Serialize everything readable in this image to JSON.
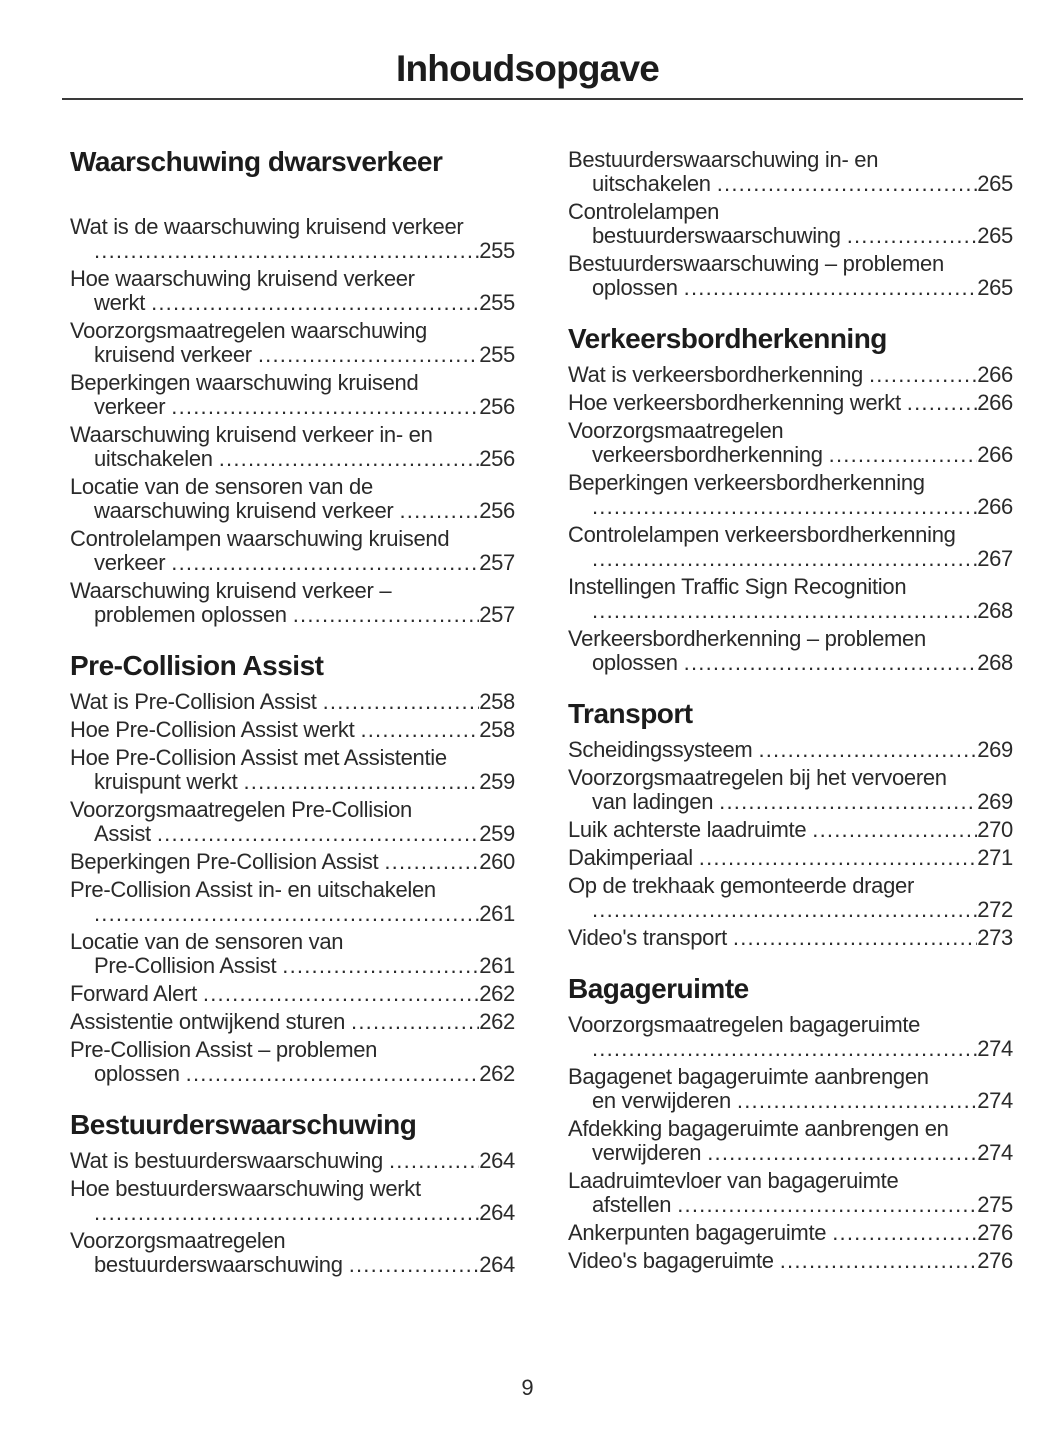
{
  "page": {
    "title": "Inhoudsopgave",
    "footer_page_number": "9"
  },
  "toc": {
    "columns": [
      {
        "sections": [
          {
            "heading": "Waarschuwing dwarsverkeer",
            "extra_heading_gap": true,
            "entries": [
              {
                "lines": [
                  "Wat is de waarschuwing kruisend verkeer",
                  ""
                ],
                "page": "255"
              },
              {
                "lines": [
                  "Hoe waarschuwing kruisend verkeer",
                  "werkt"
                ],
                "page": "255"
              },
              {
                "lines": [
                  "Voorzorgsmaatregelen waarschuwing",
                  "kruisend verkeer"
                ],
                "page": "255"
              },
              {
                "lines": [
                  "Beperkingen waarschuwing kruisend",
                  "verkeer"
                ],
                "page": "256"
              },
              {
                "lines": [
                  "Waarschuwing kruisend verkeer in- en",
                  "uitschakelen"
                ],
                "page": "256"
              },
              {
                "lines": [
                  "Locatie van de sensoren van de",
                  "waarschuwing kruisend verkeer"
                ],
                "page": "256"
              },
              {
                "lines": [
                  "Controlelampen waarschuwing kruisend",
                  "verkeer"
                ],
                "page": "257"
              },
              {
                "lines": [
                  "Waarschuwing kruisend verkeer –",
                  "problemen oplossen"
                ],
                "page": "257"
              }
            ]
          },
          {
            "heading": "Pre-Collision Assist",
            "extra_heading_gap": false,
            "entries": [
              {
                "lines": [
                  "Wat is Pre-Collision Assist"
                ],
                "page": "258"
              },
              {
                "lines": [
                  "Hoe Pre-Collision Assist werkt"
                ],
                "page": "258"
              },
              {
                "lines": [
                  "Hoe Pre-Collision Assist met Assistentie",
                  "kruispunt werkt"
                ],
                "page": "259"
              },
              {
                "lines": [
                  "Voorzorgsmaatregelen Pre-Collision",
                  "Assist"
                ],
                "page": "259"
              },
              {
                "lines": [
                  "Beperkingen Pre-Collision Assist"
                ],
                "page": "260"
              },
              {
                "lines": [
                  "Pre-Collision Assist in- en uitschakelen",
                  ""
                ],
                "page": "261"
              },
              {
                "lines": [
                  "Locatie van de sensoren van",
                  "Pre-Collision Assist"
                ],
                "page": "261"
              },
              {
                "lines": [
                  "Forward Alert"
                ],
                "page": "262"
              },
              {
                "lines": [
                  "Assistentie ontwijkend sturen"
                ],
                "page": "262"
              },
              {
                "lines": [
                  "Pre-Collision Assist – problemen",
                  "oplossen"
                ],
                "page": "262"
              }
            ]
          },
          {
            "heading": "Bestuurderswaarschuwing",
            "extra_heading_gap": false,
            "entries": [
              {
                "lines": [
                  "Wat is bestuurderswaarschuwing"
                ],
                "page": "264"
              },
              {
                "lines": [
                  "Hoe bestuurderswaarschuwing werkt",
                  ""
                ],
                "page": "264"
              },
              {
                "lines": [
                  "Voorzorgsmaatregelen",
                  "bestuurderswaarschuwing"
                ],
                "page": "264"
              }
            ]
          }
        ]
      },
      {
        "sections": [
          {
            "heading": null,
            "extra_heading_gap": false,
            "entries": [
              {
                "lines": [
                  "Bestuurderswaarschuwing in- en",
                  "uitschakelen"
                ],
                "page": "265"
              },
              {
                "lines": [
                  "Controlelampen",
                  "bestuurderswaarschuwing"
                ],
                "page": "265"
              },
              {
                "lines": [
                  "Bestuurderswaarschuwing – problemen",
                  "oplossen"
                ],
                "page": "265"
              }
            ]
          },
          {
            "heading": "Verkeersbordherkenning",
            "extra_heading_gap": false,
            "entries": [
              {
                "lines": [
                  "Wat is verkeersbordherkenning"
                ],
                "page": "266"
              },
              {
                "lines": [
                  "Hoe verkeersbordherkenning werkt"
                ],
                "page": "266"
              },
              {
                "lines": [
                  "Voorzorgsmaatregelen",
                  "verkeersbordherkenning"
                ],
                "page": "266"
              },
              {
                "lines": [
                  "Beperkingen verkeersbordherkenning",
                  ""
                ],
                "page": "266"
              },
              {
                "lines": [
                  "Controlelampen verkeersbordherkenning",
                  ""
                ],
                "page": "267"
              },
              {
                "lines": [
                  "Instellingen Traffic Sign Recognition",
                  ""
                ],
                "page": "268"
              },
              {
                "lines": [
                  "Verkeersbordherkenning – problemen",
                  "oplossen"
                ],
                "page": "268"
              }
            ]
          },
          {
            "heading": "Transport",
            "extra_heading_gap": false,
            "entries": [
              {
                "lines": [
                  "Scheidingssysteem"
                ],
                "page": "269"
              },
              {
                "lines": [
                  "Voorzorgsmaatregelen bij het vervoeren",
                  "van ladingen"
                ],
                "page": "269"
              },
              {
                "lines": [
                  "Luik achterste laadruimte"
                ],
                "page": "270"
              },
              {
                "lines": [
                  "Dakimperiaal"
                ],
                "page": "271"
              },
              {
                "lines": [
                  "Op de trekhaak gemonteerde drager",
                  ""
                ],
                "page": "272"
              },
              {
                "lines": [
                  "Video's transport"
                ],
                "page": "273"
              }
            ]
          },
          {
            "heading": "Bagageruimte",
            "extra_heading_gap": false,
            "entries": [
              {
                "lines": [
                  "Voorzorgsmaatregelen bagageruimte",
                  ""
                ],
                "page": "274"
              },
              {
                "lines": [
                  "Bagagenet bagageruimte aanbrengen",
                  "en verwijderen"
                ],
                "page": "274"
              },
              {
                "lines": [
                  "Afdekking bagageruimte aanbrengen en",
                  "verwijderen"
                ],
                "page": "274"
              },
              {
                "lines": [
                  "Laadruimtevloer van bagageruimte",
                  "afstellen"
                ],
                "page": "275"
              },
              {
                "lines": [
                  "Ankerpunten bagageruimte"
                ],
                "page": "276"
              },
              {
                "lines": [
                  "Video's bagageruimte"
                ],
                "page": "276"
              }
            ]
          }
        ]
      }
    ]
  }
}
